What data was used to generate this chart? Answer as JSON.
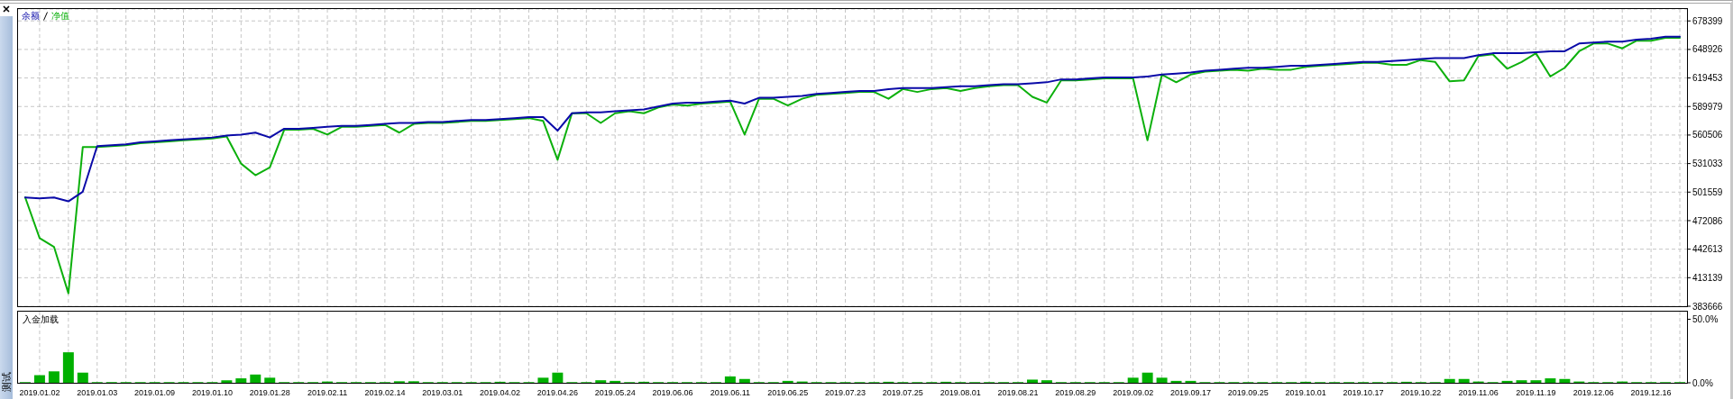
{
  "chart_data": [
    {
      "type": "line",
      "categories": [
        null,
        "2019.01.02",
        null,
        null,
        null,
        "2019.01.03",
        null,
        null,
        null,
        "2019.01.09",
        null,
        null,
        null,
        "2019.01.10",
        null,
        null,
        null,
        "2019.01.28",
        null,
        null,
        null,
        "2019.02.11",
        null,
        null,
        null,
        "2019.02.14",
        null,
        null,
        null,
        "2019.03.01",
        null,
        null,
        null,
        "2019.04.02",
        null,
        null,
        null,
        "2019.04.26",
        null,
        null,
        null,
        "2019.05.24",
        null,
        null,
        null,
        "2019.06.06",
        null,
        null,
        null,
        "2019.06.11",
        null,
        null,
        null,
        "2019.06.25",
        null,
        null,
        null,
        "2019.07.23",
        null,
        null,
        null,
        "2019.07.25",
        null,
        null,
        null,
        "2019.08.01",
        null,
        null,
        null,
        "2019.08.21",
        null,
        null,
        null,
        "2019.08.29",
        null,
        null,
        null,
        "2019.09.02",
        null,
        null,
        null,
        "2019.09.17",
        null,
        null,
        null,
        "2019.09.25",
        null,
        null,
        null,
        "2019.10.01",
        null,
        null,
        null,
        "2019.10.17",
        null,
        null,
        null,
        "2019.10.22",
        null,
        null,
        null,
        "2019.11.06",
        null,
        null,
        null,
        "2019.11.19",
        null,
        null,
        null,
        "2019.12.06",
        null,
        null,
        null,
        "2019.12.16",
        null,
        null
      ],
      "series": [
        {
          "name": "余额",
          "color": "#0a0aa8",
          "values": [
            496000,
            495000,
            496000,
            492000,
            502000,
            549000,
            550000,
            551000,
            553000,
            554000,
            555000,
            556000,
            557000,
            558000,
            560000,
            561000,
            563000,
            558000,
            567000,
            567000,
            568000,
            569000,
            570000,
            570000,
            571000,
            572000,
            573000,
            573000,
            574000,
            574000,
            575000,
            576000,
            576000,
            577000,
            578000,
            579000,
            579000,
            565000,
            583000,
            584000,
            584000,
            585000,
            586000,
            587000,
            590000,
            593000,
            594000,
            594000,
            595000,
            596000,
            593000,
            599000,
            599000,
            600000,
            601000,
            603000,
            604000,
            605000,
            606000,
            606000,
            608000,
            609000,
            609000,
            609000,
            610000,
            611000,
            611000,
            612000,
            613000,
            613000,
            614000,
            615000,
            618000,
            618000,
            619000,
            620000,
            620000,
            620000,
            621000,
            623000,
            624000,
            625000,
            627000,
            628000,
            629000,
            630000,
            630000,
            631000,
            632000,
            632000,
            633000,
            634000,
            635000,
            636000,
            636000,
            637000,
            638000,
            639000,
            640000,
            640000,
            640000,
            643000,
            645000,
            645000,
            645000,
            646000,
            647000,
            647000,
            655000,
            656000,
            657000,
            657000,
            659000,
            660000,
            662000,
            662000
          ]
        },
        {
          "name": "净值",
          "color": "#0cb00c",
          "values": [
            496000,
            454000,
            445000,
            397000,
            548000,
            548000,
            549000,
            550000,
            552000,
            553000,
            554000,
            555000,
            556000,
            557000,
            559000,
            531000,
            519000,
            527000,
            566000,
            566000,
            567000,
            561000,
            569000,
            569000,
            570000,
            571000,
            563000,
            572000,
            573000,
            573000,
            574000,
            575000,
            575000,
            576000,
            577000,
            578000,
            575000,
            535000,
            583000,
            583000,
            573000,
            583000,
            585000,
            583000,
            589000,
            592000,
            591000,
            593000,
            594000,
            595000,
            561000,
            598000,
            598000,
            591000,
            598000,
            602000,
            603000,
            604000,
            605000,
            605000,
            598000,
            608000,
            605000,
            608000,
            609000,
            606000,
            609000,
            611000,
            612000,
            612000,
            600000,
            594000,
            617000,
            617000,
            618000,
            619000,
            619000,
            619000,
            555000,
            623000,
            615000,
            623000,
            626000,
            627000,
            628000,
            627000,
            629000,
            628000,
            628000,
            631000,
            632000,
            633000,
            634000,
            635000,
            635000,
            633000,
            633000,
            638000,
            636000,
            616000,
            617000,
            642000,
            644000,
            629000,
            636000,
            645000,
            621000,
            630000,
            647000,
            655000,
            655000,
            650000,
            658000,
            658000,
            661000,
            661000
          ]
        }
      ],
      "ylim": [
        383666,
        690700
      ],
      "yticks": [
        383666,
        413139,
        442613,
        472086,
        501559,
        531033,
        560506,
        589979,
        619453,
        648926,
        678399
      ],
      "grid": true,
      "legend": "top left",
      "tick_labels": "y"
    },
    {
      "type": "bar",
      "title": "入金加载",
      "categories": [
        null,
        "2019.01.02",
        null,
        null,
        null,
        "2019.01.03",
        null,
        null,
        null,
        "2019.01.09",
        null,
        null,
        null,
        "2019.01.10",
        null,
        null,
        null,
        "2019.01.28",
        null,
        null,
        null,
        "2019.02.11",
        null,
        null,
        null,
        "2019.02.14",
        null,
        null,
        null,
        "2019.03.01",
        null,
        null,
        null,
        "2019.04.02",
        null,
        null,
        null,
        "2019.04.26",
        null,
        null,
        null,
        "2019.05.24",
        null,
        null,
        null,
        "2019.06.06",
        null,
        null,
        null,
        "2019.06.11",
        null,
        null,
        null,
        "2019.06.25",
        null,
        null,
        null,
        "2019.07.23",
        null,
        null,
        null,
        "2019.07.25",
        null,
        null,
        null,
        "2019.08.01",
        null,
        null,
        null,
        "2019.08.21",
        null,
        null,
        null,
        "2019.08.29",
        null,
        null,
        null,
        "2019.09.02",
        null,
        null,
        null,
        "2019.09.17",
        null,
        null,
        null,
        "2019.09.25",
        null,
        null,
        null,
        "2019.10.01",
        null,
        null,
        null,
        "2019.10.17",
        null,
        null,
        null,
        "2019.10.22",
        null,
        null,
        null,
        "2019.11.06",
        null,
        null,
        null,
        "2019.11.19",
        null,
        null,
        null,
        "2019.12.06",
        null,
        null,
        null,
        "2019.12.16",
        null,
        null
      ],
      "values": [
        0.5,
        6,
        9,
        24,
        8,
        0.5,
        0.5,
        0.5,
        0.5,
        0.5,
        0.5,
        0.5,
        0.5,
        0.5,
        2,
        3.5,
        6.5,
        4,
        0.5,
        0.5,
        0.5,
        1,
        0.5,
        0.5,
        0.5,
        0.5,
        1.2,
        1.2,
        0.5,
        0.5,
        0.5,
        0.5,
        0.5,
        0.8,
        0.5,
        0.5,
        4,
        8,
        0.5,
        0.5,
        2,
        1.5,
        0.5,
        0.8,
        0.5,
        0.5,
        0.5,
        0.5,
        0.5,
        5,
        3,
        0.5,
        0.5,
        1.5,
        1,
        0.5,
        0.5,
        0.5,
        0.5,
        0.5,
        0.8,
        0.5,
        0.5,
        0.5,
        0.8,
        0.5,
        0.5,
        0.5,
        0.5,
        0.5,
        2.5,
        2,
        0.5,
        0.5,
        0.5,
        0.5,
        0.5,
        4,
        8,
        4,
        1.5,
        1.5,
        0.5,
        0.5,
        0.5,
        0.5,
        0.5,
        0.5,
        0.5,
        0.8,
        0.5,
        0.5,
        0.5,
        0.5,
        0.5,
        0.5,
        0.8,
        0.5,
        0.5,
        3,
        3,
        1,
        0.5,
        1.5,
        2,
        2,
        3.5,
        3,
        1,
        0.5,
        0.5,
        1,
        0.5,
        0.5,
        0.5,
        0.5
      ],
      "color": "#00b000",
      "ylim": [
        0,
        56
      ],
      "yticks": [
        {
          "value": 0,
          "label": "0.0%"
        },
        {
          "value": 50,
          "label": "50.0%"
        }
      ],
      "grid": "x",
      "annotations": [
        "测试"
      ]
    }
  ]
}
